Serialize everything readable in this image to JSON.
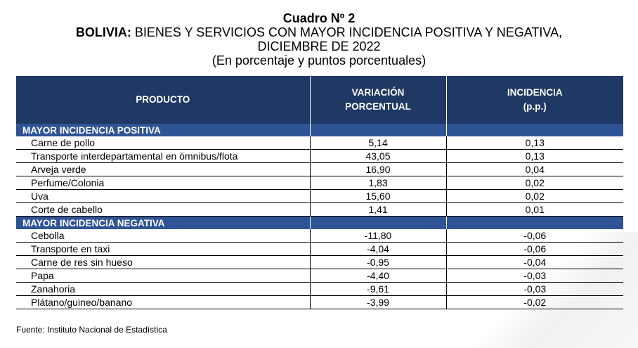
{
  "title": {
    "line1": "Cuadro Nº 2",
    "line2_bold": "BOLIVIA:",
    "line2_rest": " BIENES Y SERVICIOS CON MAYOR INCIDENCIA POSITIVA Y NEGATIVA,",
    "line3": "DICIEMBRE DE 2022",
    "line4": "(En porcentaje y puntos porcentuales)"
  },
  "headers": {
    "producto": "PRODUCTO",
    "variacion_1": "VARIACIÓN",
    "variacion_2": "PORCENTUAL",
    "incidencia_1": "INCIDENCIA",
    "incidencia_2": "(p.p.)"
  },
  "sections": [
    {
      "label": "MAYOR INCIDENCIA POSITIVA",
      "rows": [
        {
          "producto": "Carne de pollo",
          "variacion": "5,14",
          "incidencia": "0,13"
        },
        {
          "producto": "Transporte interdepartamental en ómnibus/flota",
          "variacion": "43,05",
          "incidencia": "0,13"
        },
        {
          "producto": "Arveja verde",
          "variacion": "16,90",
          "incidencia": "0,04"
        },
        {
          "producto": "Perfume/Colonia",
          "variacion": "1,83",
          "incidencia": "0,02"
        },
        {
          "producto": "Uva",
          "variacion": "15,60",
          "incidencia": "0,02"
        },
        {
          "producto": "Corte de cabello",
          "variacion": "1,41",
          "incidencia": "0,01"
        }
      ]
    },
    {
      "label": "MAYOR INCIDENCIA NEGATIVA",
      "rows": [
        {
          "producto": "Cebolla",
          "variacion": "-11,80",
          "incidencia": "-0,06"
        },
        {
          "producto": "Transporte en taxi",
          "variacion": "-4,04",
          "incidencia": "-0,06"
        },
        {
          "producto": "Carne de res sin hueso",
          "variacion": "-0,95",
          "incidencia": "-0,04"
        },
        {
          "producto": "Papa",
          "variacion": "-4,40",
          "incidencia": "-0,03"
        },
        {
          "producto": "Zanahoria",
          "variacion": "-9,61",
          "incidencia": "-0,03"
        },
        {
          "producto": "Plátano/guineo/banano",
          "variacion": "-3,99",
          "incidencia": "-0,02"
        }
      ]
    }
  ],
  "source": "Fuente: Instituto Nacional de Estadística",
  "colors": {
    "header_bg": "#1f3864",
    "section_bg": "#2f5496"
  }
}
